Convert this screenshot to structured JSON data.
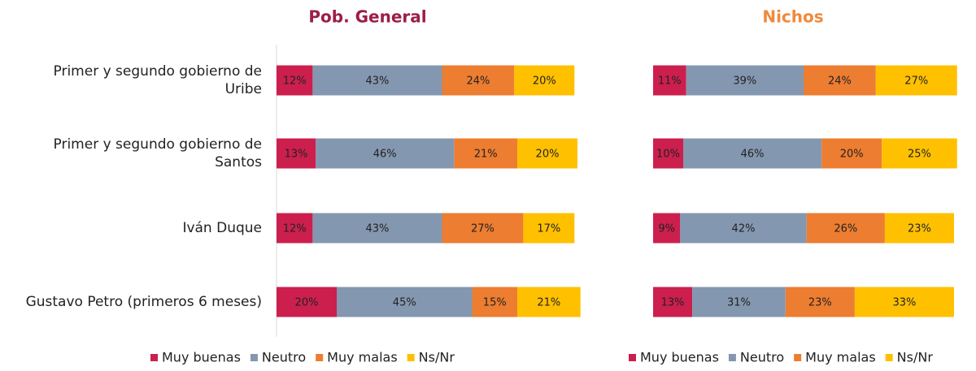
{
  "chart_data": [
    {
      "type": "stacked_barh",
      "title": "Pob. General",
      "title_color": "#9b1d4a",
      "categories": [
        "Primer y segundo gobierno de Uribe",
        "Primer y segundo gobierno de Santos",
        "Iván Duque",
        "Gustavo Petro (primeros 6 meses)"
      ],
      "xlim": [
        0,
        100
      ],
      "series": [
        {
          "name": "Muy buenas",
          "color": "#cc1f4e",
          "values": [
            12,
            13,
            12,
            20
          ],
          "value_labels": [
            "12%",
            "13%",
            "12%",
            "20%"
          ]
        },
        {
          "name": "Neutro",
          "color": "#8497b0",
          "values": [
            43,
            46,
            43,
            45
          ],
          "value_labels": [
            "43%",
            "46%",
            "43%",
            "45%"
          ]
        },
        {
          "name": "Muy malas",
          "color": "#ed7d31",
          "values": [
            24,
            21,
            27,
            15
          ],
          "value_labels": [
            "24%",
            "21%",
            "27%",
            "15%"
          ]
        },
        {
          "name": "Ns/Nr",
          "color": "#ffc000",
          "values": [
            20,
            20,
            17,
            21
          ],
          "value_labels": [
            "20%",
            "20%",
            "17%",
            "21%"
          ]
        }
      ]
    },
    {
      "type": "stacked_barh",
      "title": "Nichos",
      "title_color": "#f08a3c",
      "xlim": [
        0,
        100
      ],
      "series": [
        {
          "name": "Muy buenas",
          "color": "#cc1f4e",
          "values": [
            11,
            10,
            9,
            13
          ],
          "value_labels": [
            "11%",
            "10%",
            "9%",
            "13%"
          ]
        },
        {
          "name": "Neutro",
          "color": "#8497b0",
          "values": [
            39,
            46,
            42,
            31
          ],
          "value_labels": [
            "39%",
            "46%",
            "42%",
            "31%"
          ]
        },
        {
          "name": "Muy malas",
          "color": "#ed7d31",
          "values": [
            24,
            20,
            26,
            23
          ],
          "value_labels": [
            "24%",
            "20%",
            "26%",
            "23%"
          ]
        },
        {
          "name": "Ns/Nr",
          "color": "#ffc000",
          "values": [
            27,
            25,
            23,
            33
          ],
          "value_labels": [
            "27%",
            "25%",
            "23%",
            "33%"
          ]
        }
      ]
    }
  ]
}
